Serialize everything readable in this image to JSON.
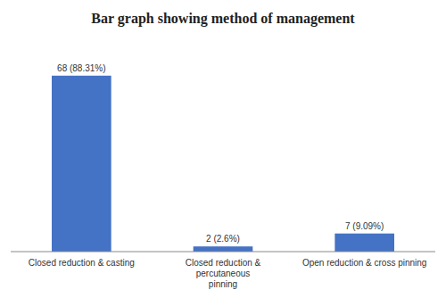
{
  "chart_data": {
    "type": "bar",
    "title": "Bar graph showing method of management",
    "categories": [
      "Closed reduction & casting",
      "Closed reduction & percutaneous\npinning",
      "Open reduction & cross pinning"
    ],
    "values": [
      68,
      2,
      7
    ],
    "value_labels": [
      "68 (88.31%)",
      "2 (2.6%)",
      "7 (9.09%)"
    ],
    "data_labels": true,
    "color": "#4472C4",
    "ylim": [
      0,
      80
    ],
    "tick_labels": "x",
    "grid": false
  }
}
